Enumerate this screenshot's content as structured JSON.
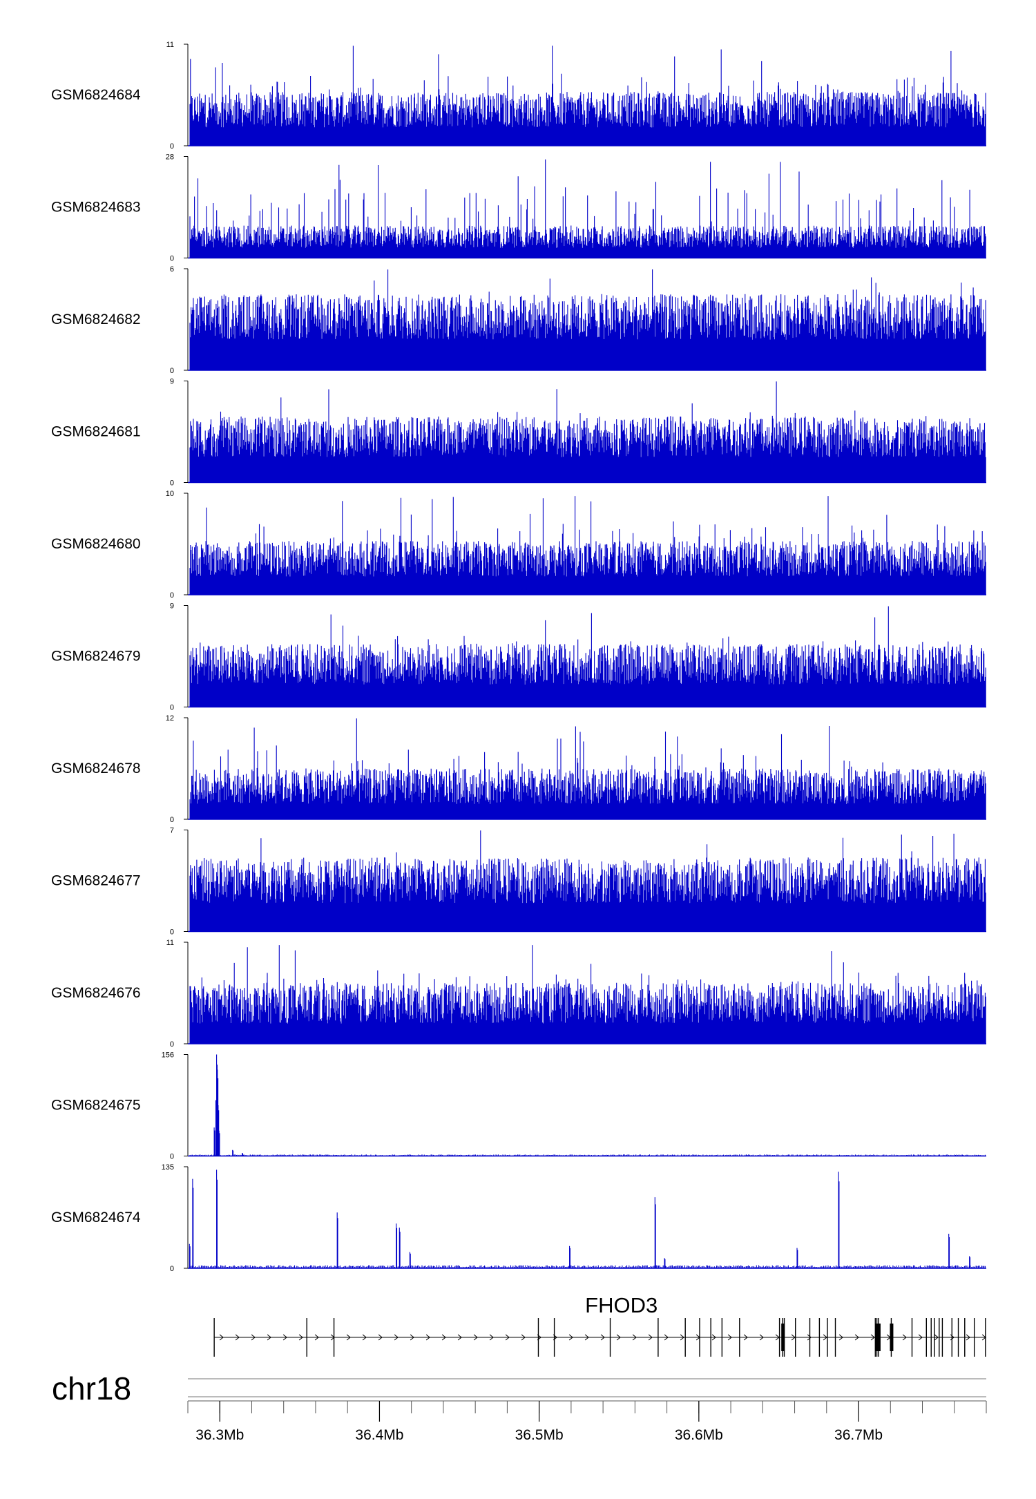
{
  "chart_data": {
    "type": "genome_browser_tracks",
    "region": {
      "chrom": "chr18",
      "start_mb": 36.28,
      "end_mb": 36.78
    },
    "series_color": "#0000c8",
    "tracks": [
      {
        "name": "GSM6824684",
        "ymax": "11",
        "ymin": "0",
        "max": 11,
        "pattern": "dense",
        "base": 0.18,
        "spread": 0.35,
        "peaks": []
      },
      {
        "name": "GSM6824683",
        "ymax": "28",
        "ymin": "0",
        "max": 28,
        "pattern": "dense",
        "base": 0.1,
        "spread": 0.22,
        "peaks": []
      },
      {
        "name": "GSM6824682",
        "ymax": "6",
        "ymin": "0",
        "max": 6,
        "pattern": "dense",
        "base": 0.3,
        "spread": 0.45,
        "peaks": []
      },
      {
        "name": "GSM6824681",
        "ymax": "9",
        "ymin": "0",
        "max": 9,
        "pattern": "dense",
        "base": 0.25,
        "spread": 0.4,
        "peaks": []
      },
      {
        "name": "GSM6824680",
        "ymax": "10",
        "ymin": "0",
        "max": 10,
        "pattern": "dense",
        "base": 0.18,
        "spread": 0.35,
        "peaks": []
      },
      {
        "name": "GSM6824679",
        "ymax": "9",
        "ymin": "0",
        "max": 9,
        "pattern": "dense",
        "base": 0.22,
        "spread": 0.4,
        "peaks": []
      },
      {
        "name": "GSM6824678",
        "ymax": "12",
        "ymin": "0",
        "max": 12,
        "pattern": "dense",
        "base": 0.15,
        "spread": 0.35,
        "peaks": []
      },
      {
        "name": "GSM6824677",
        "ymax": "7",
        "ymin": "0",
        "max": 7,
        "pattern": "dense",
        "base": 0.28,
        "spread": 0.45,
        "peaks": []
      },
      {
        "name": "GSM6824676",
        "ymax": "11",
        "ymin": "0",
        "max": 11,
        "pattern": "dense",
        "base": 0.2,
        "spread": 0.4,
        "peaks": []
      },
      {
        "name": "GSM6824675",
        "ymax": "156",
        "ymin": "0",
        "max": 156,
        "pattern": "sparse",
        "base": 0.005,
        "spread": 0.01,
        "peaks": [
          [
            36.2965,
            0.28
          ],
          [
            36.2975,
            0.55
          ],
          [
            36.298,
            1.0
          ],
          [
            36.2985,
            0.85
          ],
          [
            36.299,
            0.5
          ],
          [
            36.2995,
            0.25
          ],
          [
            36.308,
            0.06
          ],
          [
            36.314,
            0.03
          ]
        ]
      },
      {
        "name": "GSM6824674",
        "ymax": "135",
        "ymin": "0",
        "max": 135,
        "pattern": "sparse",
        "base": 0.01,
        "spread": 0.02,
        "peaks": [
          [
            36.281,
            0.24
          ],
          [
            36.283,
            0.88
          ],
          [
            36.298,
            0.97
          ],
          [
            36.3735,
            0.55
          ],
          [
            36.4105,
            0.44
          ],
          [
            36.4125,
            0.4
          ],
          [
            36.419,
            0.16
          ],
          [
            36.519,
            0.22
          ],
          [
            36.5725,
            0.7
          ],
          [
            36.5785,
            0.1
          ],
          [
            36.6615,
            0.2
          ],
          [
            36.6875,
            0.95
          ],
          [
            36.7565,
            0.34
          ],
          [
            36.7695,
            0.12
          ]
        ]
      }
    ],
    "gene": {
      "name": "FHOD3",
      "strand": "+",
      "start_mb": 36.2965,
      "end_mb": 36.78,
      "exons": [
        36.2965,
        36.3545,
        36.3715,
        36.4995,
        36.5095,
        36.5445,
        36.5745,
        36.5915,
        36.6005,
        36.6075,
        36.6145,
        36.6255,
        36.6505,
        36.6525,
        36.6535,
        36.6605,
        36.6695,
        36.6755,
        36.6805,
        36.6855,
        36.7105,
        36.7115,
        36.7125,
        36.7205,
        36.7335,
        36.7425,
        36.7455,
        36.7475,
        36.7505,
        36.7525,
        36.7585,
        36.7625,
        36.7665,
        36.7725,
        36.7795
      ],
      "thick_exons": [
        36.6525,
        36.7115,
        36.7125,
        36.7205
      ]
    },
    "chrom_label": "chr18",
    "x_axis": {
      "major_ticks": [
        36.3,
        36.4,
        36.5,
        36.6,
        36.7
      ],
      "major_labels": [
        "36.3Mb",
        "36.4Mb",
        "36.5Mb",
        "36.6Mb",
        "36.7Mb"
      ],
      "minor_step": 0.02
    }
  }
}
